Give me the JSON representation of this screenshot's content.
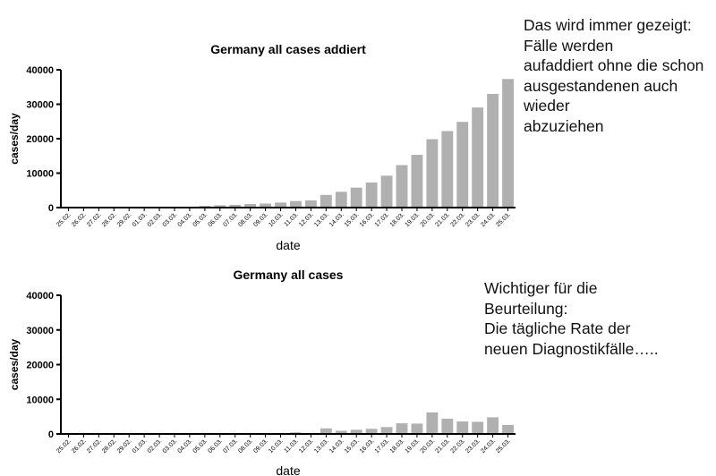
{
  "notes": {
    "top": "Das wird immer gezeigt:\nFälle werden\naufaddiert ohne die schon\nausgestandenen auch\nwieder\nabzuziehen",
    "bottom": "Wichtiger für die\nBeurteilung:\nDie tägliche Rate der\nneuen Diagnostikfälle….."
  },
  "chart_data": [
    {
      "type": "bar",
      "title": "Germany all cases addiert",
      "xlabel": "date",
      "ylabel": "cases/day",
      "ylim": [
        0,
        40000
      ],
      "yticks": [
        "0",
        "10000",
        "20000",
        "30000",
        "40000"
      ],
      "bar_color": "#b0b0b0",
      "categories": [
        "25.02.",
        "26.02.",
        "27.02.",
        "28.02.",
        "29.02.",
        "01.03.",
        "02.03.",
        "03.03.",
        "04.03.",
        "05.03.",
        "06.03.",
        "07.03.",
        "08.03.",
        "09.03.",
        "10.03.",
        "11.03.",
        "12.03.",
        "13.03.",
        "14.03.",
        "15.03.",
        "16.03.",
        "17.03.",
        "18.03.",
        "19.03.",
        "20.03.",
        "21.03.",
        "22.03.",
        "23.03.",
        "24.03.",
        "25.03."
      ],
      "values": [
        18,
        27,
        46,
        48,
        79,
        130,
        159,
        196,
        262,
        482,
        670,
        799,
        1040,
        1176,
        1457,
        1908,
        2078,
        3675,
        4585,
        5795,
        7272,
        9257,
        12327,
        15320,
        19848,
        22213,
        24873,
        29056,
        32986,
        37323
      ]
    },
    {
      "type": "bar",
      "title": "Germany all cases",
      "xlabel": "date",
      "ylabel": "cases/day",
      "ylim": [
        0,
        40000
      ],
      "yticks": [
        "0",
        "10000",
        "20000",
        "30000",
        "40000"
      ],
      "bar_color": "#b0b0b0",
      "categories": [
        "25.02.",
        "26.02.",
        "27.02.",
        "28.02.",
        "29.02.",
        "01.03.",
        "02.03.",
        "03.03.",
        "04.03.",
        "05.03.",
        "06.03.",
        "07.03.",
        "08.03.",
        "09.03.",
        "10.03.",
        "11.03.",
        "12.03.",
        "13.03.",
        "14.03.",
        "15.03.",
        "16.03.",
        "17.03.",
        "18.03.",
        "19.03.",
        "20.03.",
        "21.03.",
        "22.03.",
        "23.03.",
        "24.03.",
        "25.03."
      ],
      "values": [
        2,
        9,
        19,
        2,
        31,
        51,
        29,
        37,
        66,
        220,
        188,
        129,
        241,
        136,
        281,
        451,
        170,
        1597,
        910,
        1210,
        1477,
        1985,
        3070,
        2993,
        6200,
        4400,
        3600,
        3500,
        4800,
        2600
      ]
    }
  ]
}
